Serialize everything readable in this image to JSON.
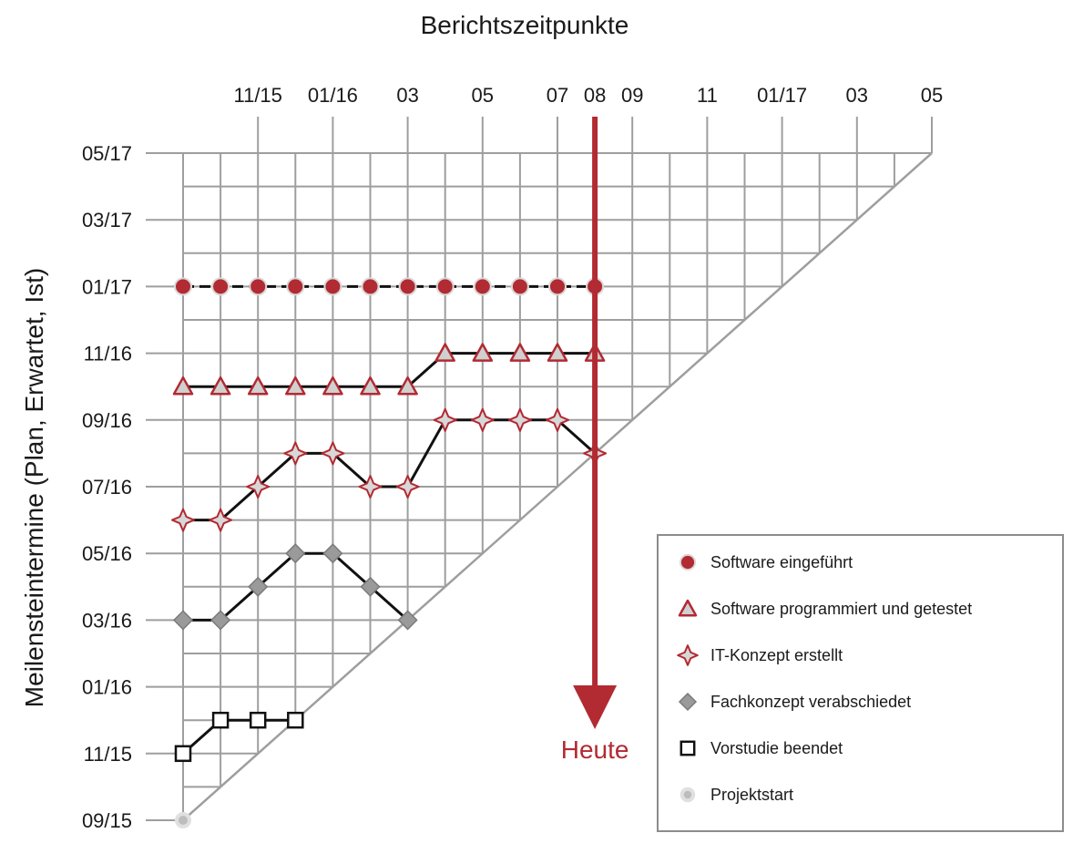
{
  "chart_data": {
    "type": "line",
    "title": "Berichtszeitpunkte",
    "xlabel": "Berichtszeitpunkte",
    "ylabel": "Meilensteintermine (Plan, Erwartet, Ist)",
    "x_ticks": [
      {
        "label": "11/15",
        "x": "2015-11"
      },
      {
        "label": "01/16",
        "x": "2016-01"
      },
      {
        "label": "03",
        "x": "2016-03"
      },
      {
        "label": "05",
        "x": "2016-05"
      },
      {
        "label": "07",
        "x": "2016-07"
      },
      {
        "label": "08",
        "x": "2016-08",
        "highlight": true
      },
      {
        "label": "09",
        "x": "2016-09"
      },
      {
        "label": "11",
        "x": "2016-11"
      },
      {
        "label": "01/17",
        "x": "2017-01"
      },
      {
        "label": "03",
        "x": "2017-03"
      },
      {
        "label": "05",
        "x": "2017-05"
      }
    ],
    "y_ticks": [
      {
        "label": "09/15",
        "y": "2015-09"
      },
      {
        "label": "11/15",
        "y": "2015-11"
      },
      {
        "label": "01/16",
        "y": "2016-01"
      },
      {
        "label": "03/16",
        "y": "2016-03"
      },
      {
        "label": "05/16",
        "y": "2016-05"
      },
      {
        "label": "07/16",
        "y": "2016-07"
      },
      {
        "label": "09/16",
        "y": "2016-09"
      },
      {
        "label": "11/16",
        "y": "2016-11"
      },
      {
        "label": "01/17",
        "y": "2017-01"
      },
      {
        "label": "03/17",
        "y": "2017-03"
      },
      {
        "label": "05/17",
        "y": "2017-05"
      }
    ],
    "xlim": [
      "2015-09",
      "2017-05"
    ],
    "ylim": [
      "2015-09",
      "2017-05"
    ],
    "grid": true,
    "today": {
      "label": "Heute",
      "x": "2016-08"
    },
    "legend_position": "bottom-right",
    "series": [
      {
        "name": "Software eingeführt",
        "marker": "circle",
        "color": "#b22a32",
        "points": [
          {
            "x": "2015-09",
            "y": "2017-01"
          },
          {
            "x": "2015-10",
            "y": "2017-01"
          },
          {
            "x": "2015-11",
            "y": "2017-01"
          },
          {
            "x": "2015-12",
            "y": "2017-01"
          },
          {
            "x": "2016-01",
            "y": "2017-01"
          },
          {
            "x": "2016-02",
            "y": "2017-01"
          },
          {
            "x": "2016-03",
            "y": "2017-01"
          },
          {
            "x": "2016-04",
            "y": "2017-01"
          },
          {
            "x": "2016-05",
            "y": "2017-01"
          },
          {
            "x": "2016-06",
            "y": "2017-01"
          },
          {
            "x": "2016-07",
            "y": "2017-01"
          },
          {
            "x": "2016-08",
            "y": "2017-01"
          }
        ]
      },
      {
        "name": "Software programmiert und getestet",
        "marker": "triangle",
        "color": "#b22a32",
        "points": [
          {
            "x": "2015-09",
            "y": "2016-10"
          },
          {
            "x": "2015-10",
            "y": "2016-10"
          },
          {
            "x": "2015-11",
            "y": "2016-10"
          },
          {
            "x": "2015-12",
            "y": "2016-10"
          },
          {
            "x": "2016-01",
            "y": "2016-10"
          },
          {
            "x": "2016-02",
            "y": "2016-10"
          },
          {
            "x": "2016-03",
            "y": "2016-10"
          },
          {
            "x": "2016-04",
            "y": "2016-11"
          },
          {
            "x": "2016-05",
            "y": "2016-11"
          },
          {
            "x": "2016-06",
            "y": "2016-11"
          },
          {
            "x": "2016-07",
            "y": "2016-11"
          },
          {
            "x": "2016-08",
            "y": "2016-11"
          }
        ]
      },
      {
        "name": "IT-Konzept erstellt",
        "marker": "star4",
        "color": "#b22a32",
        "points": [
          {
            "x": "2015-09",
            "y": "2016-06"
          },
          {
            "x": "2015-10",
            "y": "2016-06"
          },
          {
            "x": "2015-11",
            "y": "2016-07"
          },
          {
            "x": "2015-12",
            "y": "2016-08"
          },
          {
            "x": "2016-01",
            "y": "2016-08"
          },
          {
            "x": "2016-02",
            "y": "2016-07"
          },
          {
            "x": "2016-03",
            "y": "2016-07"
          },
          {
            "x": "2016-04",
            "y": "2016-09"
          },
          {
            "x": "2016-05",
            "y": "2016-09"
          },
          {
            "x": "2016-06",
            "y": "2016-09"
          },
          {
            "x": "2016-07",
            "y": "2016-09"
          },
          {
            "x": "2016-08",
            "y": "2016-08"
          }
        ]
      },
      {
        "name": "Fachkonzept verabschiedet",
        "marker": "diamond",
        "color": "#9a9a9a",
        "points": [
          {
            "x": "2015-09",
            "y": "2016-03"
          },
          {
            "x": "2015-10",
            "y": "2016-03"
          },
          {
            "x": "2015-11",
            "y": "2016-04"
          },
          {
            "x": "2015-12",
            "y": "2016-05"
          },
          {
            "x": "2016-01",
            "y": "2016-05"
          },
          {
            "x": "2016-02",
            "y": "2016-04"
          },
          {
            "x": "2016-03",
            "y": "2016-03"
          }
        ]
      },
      {
        "name": "Vorstudie beendet",
        "marker": "square",
        "color": "#111111",
        "points": [
          {
            "x": "2015-09",
            "y": "2015-11"
          },
          {
            "x": "2015-10",
            "y": "2015-12"
          },
          {
            "x": "2015-11",
            "y": "2015-12"
          },
          {
            "x": "2015-12",
            "y": "2015-12"
          }
        ]
      },
      {
        "name": "Projektstart",
        "marker": "dot",
        "color": "#c8c8c8",
        "points": [
          {
            "x": "2015-09",
            "y": "2015-09"
          }
        ]
      }
    ]
  }
}
